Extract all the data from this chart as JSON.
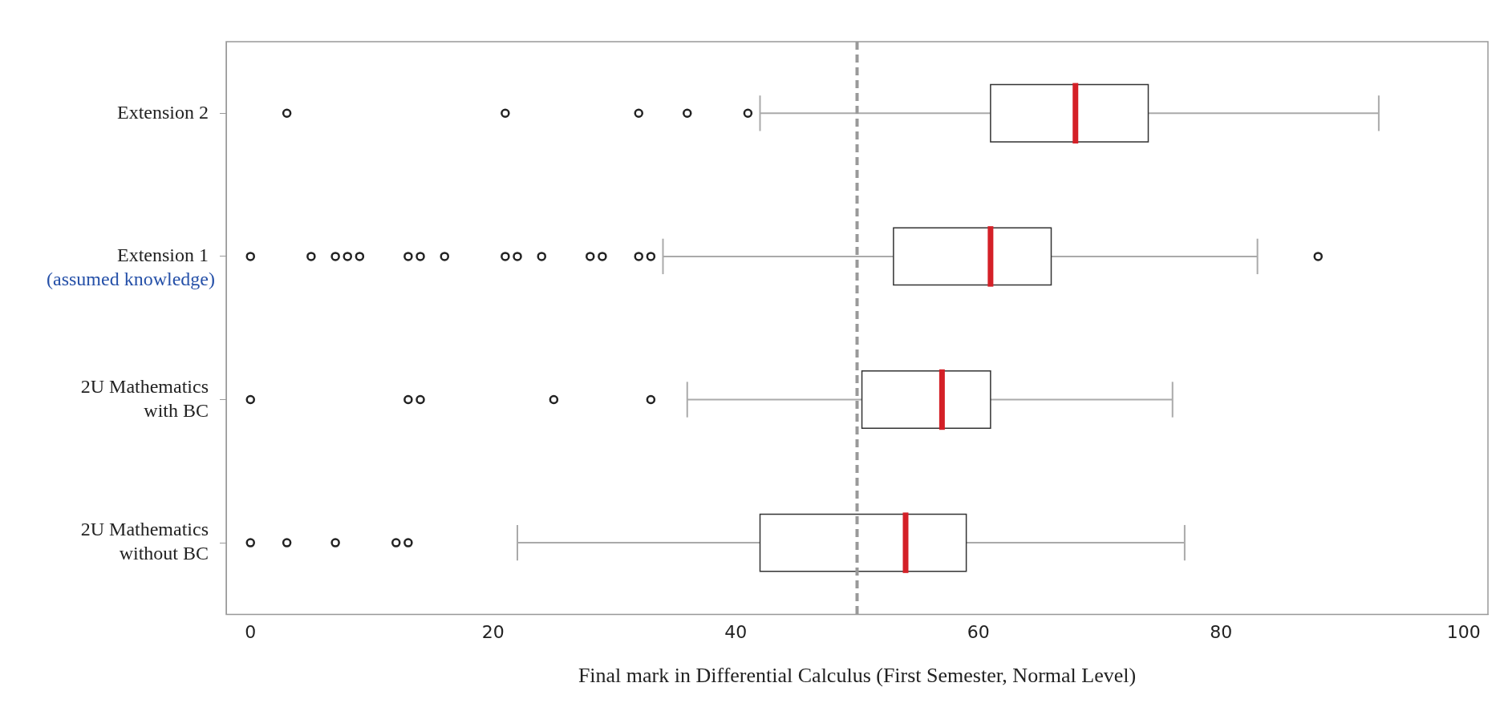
{
  "chart_data": {
    "type": "box",
    "orientation": "horizontal",
    "categories": [
      "Extension 2",
      "Extension 1",
      "2U Mathematics with BC",
      "2U Mathematics without BC"
    ],
    "boxes": [
      {
        "low": 42,
        "q1": 61,
        "median": 68,
        "q3": 74,
        "high": 93,
        "outliers": [
          3,
          21,
          32,
          36,
          41
        ]
      },
      {
        "low": 34,
        "q1": 53,
        "median": 61,
        "q3": 66,
        "high": 83,
        "outliers": [
          0,
          5,
          7,
          8,
          9,
          13,
          14,
          16,
          21,
          22,
          24,
          28,
          29,
          32,
          33,
          88
        ]
      },
      {
        "low": 36,
        "q1": 50.4,
        "median": 57,
        "q3": 61,
        "high": 76,
        "outliers": [
          0,
          13,
          14,
          25,
          33
        ]
      },
      {
        "low": 22,
        "q1": 42,
        "median": 54,
        "q3": 59,
        "high": 77,
        "outliers": [
          0,
          3,
          7,
          12,
          13
        ]
      }
    ],
    "xlim": [
      -2,
      102
    ],
    "xticks": [
      0,
      20,
      40,
      60,
      80,
      100
    ],
    "xlabel": "Final mark in Differential Calculus (First Semester, Normal Level)",
    "ref_lines": [
      {
        "axis": "x",
        "value": 50,
        "color": "#999999",
        "line_style": "dashed"
      }
    ],
    "annotations": [
      "(assumed knowledge)"
    ],
    "grid": false,
    "legend": false
  }
}
